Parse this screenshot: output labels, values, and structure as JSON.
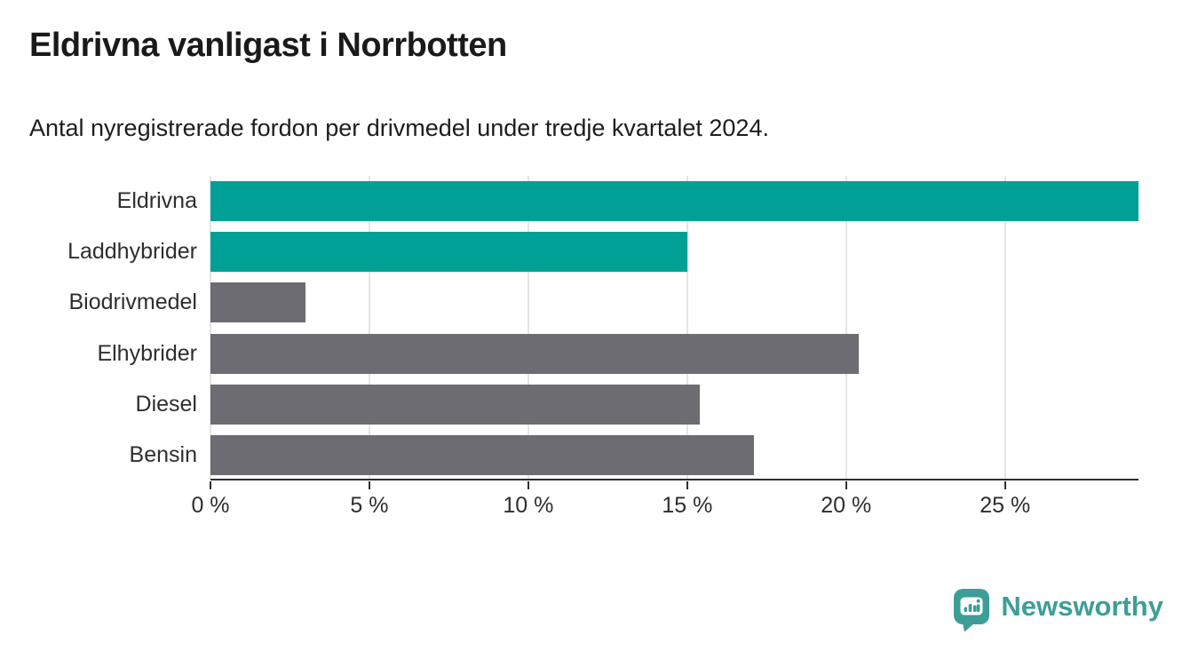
{
  "chart_data": {
    "type": "bar",
    "orientation": "horizontal",
    "title": "Eldrivna vanligast i Norrbotten",
    "subtitle": "Antal nyregistrerade fordon per drivmedel under tredje kvartalet 2024.",
    "categories": [
      "Eldrivna",
      "Laddhybrider",
      "Biodrivmedel",
      "Elhybrider",
      "Diesel",
      "Bensin"
    ],
    "values": [
      29.2,
      15.0,
      3.0,
      20.4,
      15.4,
      17.1
    ],
    "unit": "%",
    "bar_colors": [
      "#00a096",
      "#00a096",
      "#6c6c72",
      "#6c6c72",
      "#6c6c72",
      "#6c6c72"
    ],
    "xlim": [
      0,
      29.2
    ],
    "xticks": [
      0,
      5,
      10,
      15,
      20,
      25
    ],
    "xtick_labels": [
      "0 %",
      "5 %",
      "10 %",
      "15 %",
      "20 %",
      "25 %"
    ],
    "grid": "vertical-gridlines-on",
    "legend": "none"
  },
  "colors": {
    "accent_teal": "#00a096",
    "muted_gray_bar": "#6c6c72",
    "brand_teal": "#3d9e97"
  },
  "branding": {
    "logo_text": "Newsworthy",
    "logo_icon": "newsworthy-marker-bar-chart-icon"
  }
}
